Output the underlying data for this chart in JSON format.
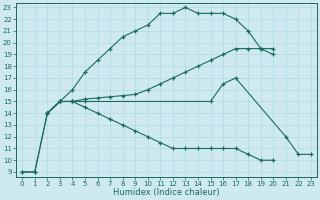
{
  "bg_color": "#ceeaf0",
  "line_color": "#1a6b5a",
  "grid_color": "#a8d5df",
  "xlabel": "Humidex (Indice chaleur)",
  "xlim": [
    -0.5,
    23.5
  ],
  "ylim": [
    8.6,
    23.4
  ],
  "xticks": [
    0,
    1,
    2,
    3,
    4,
    5,
    6,
    7,
    8,
    9,
    10,
    11,
    12,
    13,
    14,
    15,
    16,
    17,
    18,
    19,
    20,
    21,
    22,
    23
  ],
  "yticks": [
    9,
    10,
    11,
    12,
    13,
    14,
    15,
    16,
    17,
    18,
    19,
    20,
    21,
    22,
    23
  ],
  "line1_x": [
    0,
    1,
    2,
    3,
    4,
    5,
    6,
    7,
    8,
    9,
    10,
    11,
    12,
    13,
    14,
    15,
    16,
    17,
    18,
    19,
    20
  ],
  "line1_y": [
    9.0,
    9.0,
    14.0,
    15.0,
    16.0,
    17.5,
    18.5,
    19.5,
    20.5,
    21.0,
    21.5,
    22.5,
    22.5,
    23.0,
    22.5,
    22.5,
    22.5,
    22.0,
    21.0,
    19.5,
    19.0
  ],
  "line2_x": [
    2,
    3,
    4,
    5,
    6,
    7,
    8,
    9,
    10,
    11,
    12,
    13,
    14,
    15,
    16,
    17,
    18,
    19,
    20
  ],
  "line2_y": [
    14.0,
    15.0,
    15.0,
    15.2,
    15.3,
    15.4,
    15.5,
    15.6,
    16.0,
    16.5,
    17.0,
    17.5,
    18.0,
    18.5,
    19.0,
    19.5,
    19.5,
    19.5,
    19.5
  ],
  "line3_x": [
    0,
    1,
    2,
    3,
    4,
    5,
    6,
    7,
    8,
    9,
    10,
    11,
    12,
    13,
    14,
    15,
    16,
    17,
    18,
    19,
    20
  ],
  "line3_y": [
    9.0,
    9.0,
    14.0,
    15.0,
    15.0,
    14.5,
    14.0,
    13.5,
    13.0,
    12.5,
    12.0,
    11.5,
    11.0,
    11.0,
    11.0,
    11.0,
    11.0,
    11.0,
    10.5,
    10.0,
    10.0
  ],
  "line4_x": [
    2,
    3,
    4,
    5,
    15,
    16,
    17,
    21,
    22,
    23
  ],
  "line4_y": [
    14.0,
    15.0,
    15.0,
    15.0,
    15.0,
    16.5,
    17.0,
    12.0,
    10.5,
    10.5
  ]
}
